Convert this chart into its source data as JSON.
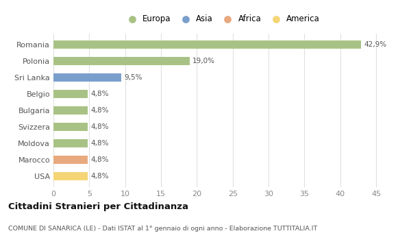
{
  "categories": [
    "Romania",
    "Polonia",
    "Sri Lanka",
    "Belgio",
    "Bulgaria",
    "Svizzera",
    "Moldova",
    "Marocco",
    "USA"
  ],
  "values": [
    42.9,
    19.0,
    9.5,
    4.8,
    4.8,
    4.8,
    4.8,
    4.8,
    4.8
  ],
  "labels": [
    "42,9%",
    "19,0%",
    "9,5%",
    "4,8%",
    "4,8%",
    "4,8%",
    "4,8%",
    "4,8%",
    "4,8%"
  ],
  "continents": [
    "Europa",
    "Europa",
    "Asia",
    "Europa",
    "Europa",
    "Europa",
    "Europa",
    "Africa",
    "America"
  ],
  "colors": {
    "Europa": "#a8c285",
    "Asia": "#7b9fcc",
    "Africa": "#e8a97e",
    "America": "#f5d576"
  },
  "xlim": [
    0,
    47
  ],
  "xticks": [
    0,
    5,
    10,
    15,
    20,
    25,
    30,
    35,
    40,
    45
  ],
  "title": "Cittadini Stranieri per Cittadinanza",
  "subtitle": "COMUNE DI SANARICA (LE) - Dati ISTAT al 1° gennaio di ogni anno - Elaborazione TUTTITALIA.IT",
  "background_color": "#ffffff",
  "grid_color": "#e0e0e0",
  "bar_height": 0.5,
  "legend_items": [
    "Europa",
    "Asia",
    "Africa",
    "America"
  ]
}
